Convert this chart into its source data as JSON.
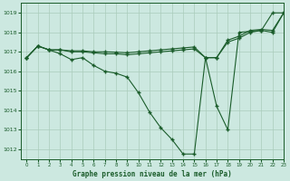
{
  "background_color": "#cce8e0",
  "grid_color": "#aaccbb",
  "line_color": "#1a5c2a",
  "xlabel": "Graphe pression niveau de la mer (hPa)",
  "xlim": [
    -0.5,
    23
  ],
  "ylim": [
    1011.5,
    1019.5
  ],
  "yticks": [
    1012,
    1013,
    1014,
    1015,
    1016,
    1017,
    1018,
    1019
  ],
  "xticks": [
    0,
    1,
    2,
    3,
    4,
    5,
    6,
    7,
    8,
    9,
    10,
    11,
    12,
    13,
    14,
    15,
    16,
    17,
    18,
    19,
    20,
    21,
    22,
    23
  ],
  "series": [
    {
      "x": [
        0,
        1,
        2,
        3,
        4,
        5,
        6,
        7,
        8,
        9,
        10,
        11,
        12,
        13,
        14,
        15,
        16,
        17,
        18,
        19,
        20,
        21,
        22,
        23
      ],
      "y": [
        1016.7,
        1017.3,
        1017.1,
        1016.9,
        1016.6,
        1016.7,
        1016.3,
        1016.0,
        1015.9,
        1015.7,
        1014.9,
        1013.9,
        1013.1,
        1012.5,
        1011.75,
        1011.75,
        1016.7,
        1014.2,
        1013.0,
        1018.0,
        1018.05,
        1018.1,
        1019.0,
        1019.0
      ]
    },
    {
      "x": [
        0,
        1,
        2,
        3,
        4,
        5,
        6,
        7,
        8,
        9,
        10,
        11,
        12,
        13,
        14,
        15,
        16,
        17,
        18,
        19,
        20,
        21,
        22,
        23
      ],
      "y": [
        1016.7,
        1017.3,
        1017.1,
        1017.1,
        1017.0,
        1017.0,
        1016.95,
        1016.9,
        1016.9,
        1016.85,
        1016.9,
        1016.95,
        1017.0,
        1017.05,
        1017.1,
        1017.15,
        1016.7,
        1016.7,
        1017.5,
        1017.7,
        1018.0,
        1018.1,
        1018.0,
        1019.0
      ]
    },
    {
      "x": [
        0,
        1,
        2,
        3,
        4,
        5,
        6,
        7,
        8,
        9,
        10,
        11,
        12,
        13,
        14,
        15,
        16,
        17,
        18,
        19,
        20,
        21,
        22,
        23
      ],
      "y": [
        1016.7,
        1017.3,
        1017.1,
        1017.1,
        1017.05,
        1017.05,
        1017.0,
        1017.0,
        1016.98,
        1016.95,
        1017.0,
        1017.05,
        1017.1,
        1017.15,
        1017.2,
        1017.25,
        1016.7,
        1016.7,
        1017.6,
        1017.8,
        1018.1,
        1018.15,
        1018.1,
        1019.0
      ]
    }
  ]
}
